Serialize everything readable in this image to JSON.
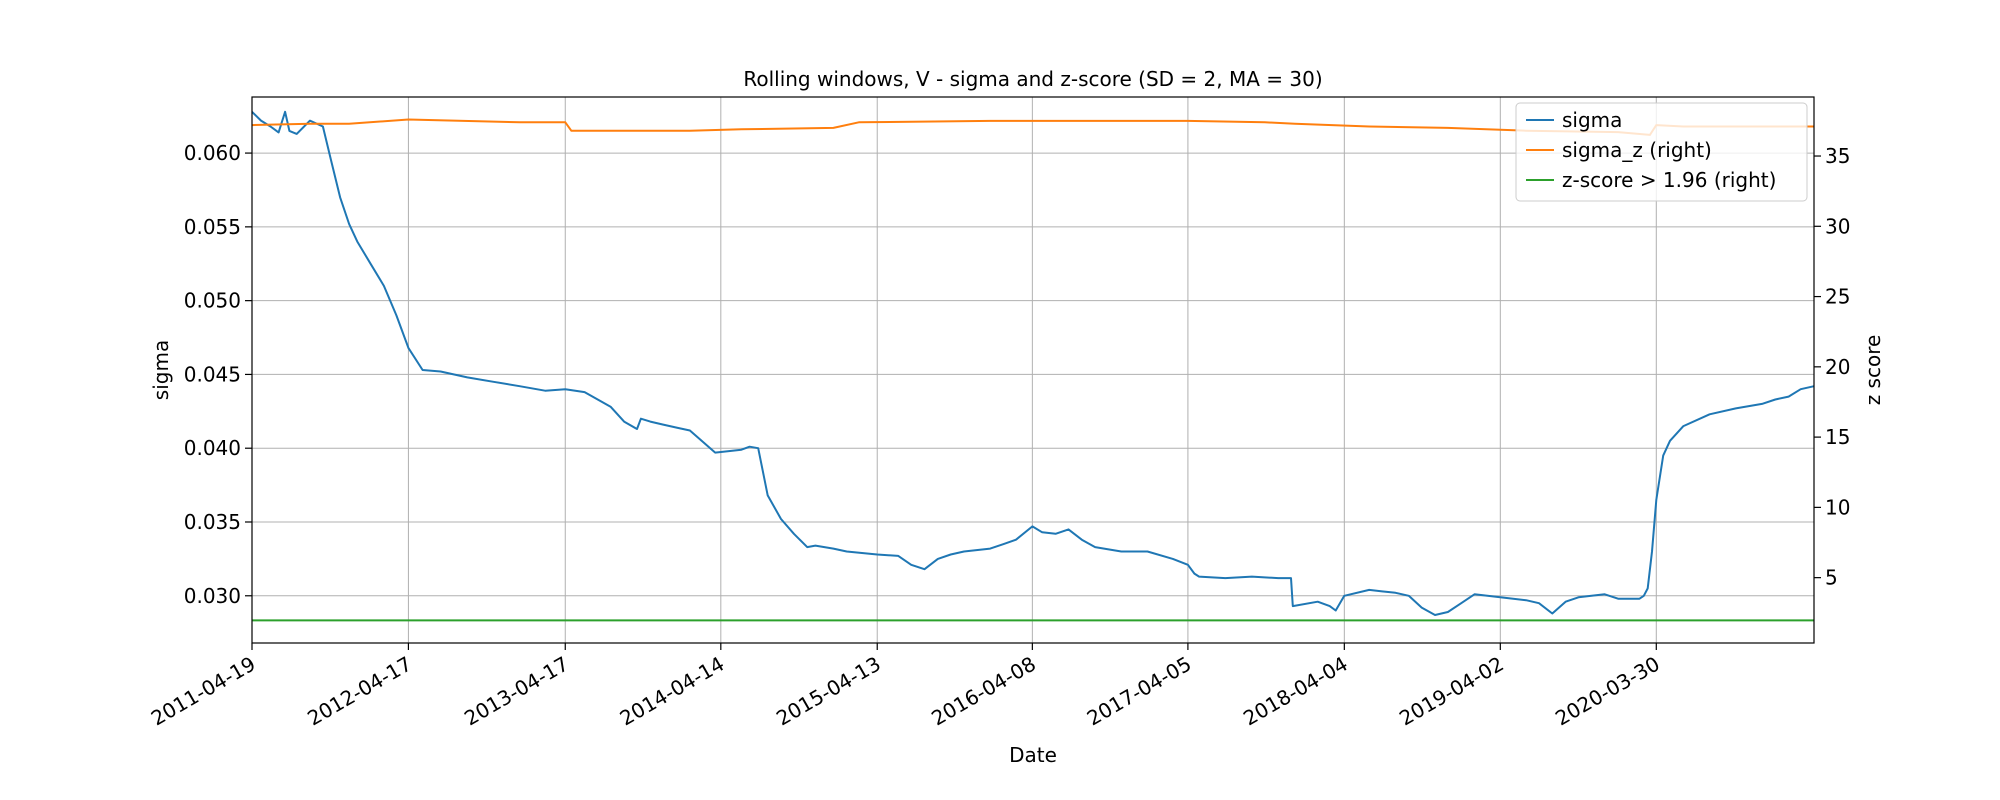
{
  "chart_data": {
    "type": "line",
    "title": "Rolling windows, V - sigma and z-score (SD = 2, MA = 30)",
    "xlabel": "Date",
    "ylabel": "sigma",
    "y2label": "z score",
    "xlim": [
      "2011-04-19",
      "2021-04-01"
    ],
    "ylim": [
      0.0268,
      0.0638
    ],
    "y2lim": [
      0.35,
      39.2
    ],
    "x_ticks": [
      "2011-04-19",
      "2012-04-17",
      "2013-04-17",
      "2014-04-14",
      "2015-04-13",
      "2016-04-08",
      "2017-04-05",
      "2018-04-04",
      "2019-04-02",
      "2020-03-30"
    ],
    "y_ticks": [
      "0.030",
      "0.035",
      "0.040",
      "0.045",
      "0.050",
      "0.055",
      "0.060"
    ],
    "y2_ticks": [
      "5",
      "10",
      "15",
      "20",
      "25",
      "30",
      "35"
    ],
    "grid": true,
    "legend_position": "top-right",
    "series": [
      {
        "name": "sigma",
        "axis": "left",
        "color": "#1f77b4",
        "x": [
          "2011-04-19",
          "2011-05-10",
          "2011-06-01",
          "2011-06-20",
          "2011-07-05",
          "2011-07-15",
          "2011-08-01",
          "2011-09-01",
          "2011-10-01",
          "2011-10-20",
          "2011-11-10",
          "2011-12-01",
          "2011-12-20",
          "2012-01-20",
          "2012-02-20",
          "2012-03-20",
          "2012-04-17",
          "2012-05-20",
          "2012-07-01",
          "2012-09-01",
          "2012-11-01",
          "2013-01-01",
          "2013-03-01",
          "2013-04-17",
          "2013-06-01",
          "2013-08-01",
          "2013-09-01",
          "2013-10-01",
          "2013-10-10",
          "2013-11-01",
          "2013-12-01",
          "2014-01-01",
          "2014-02-01",
          "2014-04-01",
          "2014-06-01",
          "2014-06-20",
          "2014-07-10",
          "2014-08-01",
          "2014-09-01",
          "2014-10-01",
          "2014-11-01",
          "2014-11-20",
          "2015-01-01",
          "2015-02-01",
          "2015-04-13",
          "2015-06-01",
          "2015-07-01",
          "2015-08-01",
          "2015-09-01",
          "2015-10-01",
          "2015-11-01",
          "2016-01-01",
          "2016-02-01",
          "2016-03-01",
          "2016-04-08",
          "2016-05-01",
          "2016-06-01",
          "2016-07-01",
          "2016-08-01",
          "2016-09-01",
          "2016-11-01",
          "2017-01-01",
          "2017-03-01",
          "2017-04-05",
          "2017-04-20",
          "2017-05-01",
          "2017-07-01",
          "2017-09-01",
          "2017-11-01",
          "2017-12-01",
          "2017-12-05",
          "2018-02-01",
          "2018-03-01",
          "2018-03-15",
          "2018-04-04",
          "2018-06-01",
          "2018-07-01",
          "2018-08-01",
          "2018-09-01",
          "2018-10-01",
          "2018-11-01",
          "2018-12-01",
          "2019-01-01",
          "2019-02-01",
          "2019-04-02",
          "2019-06-01",
          "2019-07-01",
          "2019-08-01",
          "2019-09-01",
          "2019-10-01",
          "2019-12-01",
          "2020-01-01",
          "2020-02-01",
          "2020-02-20",
          "2020-03-01",
          "2020-03-10",
          "2020-03-20",
          "2020-03-30",
          "2020-04-15",
          "2020-05-01",
          "2020-06-01",
          "2020-08-01",
          "2020-10-01",
          "2020-12-01",
          "2021-01-01",
          "2021-02-01",
          "2021-03-01",
          "2021-04-01"
        ],
        "values": [
          0.0628,
          0.0622,
          0.0618,
          0.0614,
          0.0628,
          0.0615,
          0.0613,
          0.0622,
          0.0618,
          0.0595,
          0.057,
          0.0552,
          0.054,
          0.0525,
          0.051,
          0.049,
          0.0468,
          0.0453,
          0.0452,
          0.0448,
          0.0445,
          0.0442,
          0.0439,
          0.044,
          0.0438,
          0.0428,
          0.0418,
          0.0413,
          0.042,
          0.0418,
          0.0416,
          0.0414,
          0.0412,
          0.0397,
          0.0399,
          0.0401,
          0.04,
          0.0368,
          0.0352,
          0.0342,
          0.0333,
          0.0334,
          0.0332,
          0.033,
          0.0328,
          0.0327,
          0.0321,
          0.0318,
          0.0325,
          0.0328,
          0.033,
          0.0332,
          0.0335,
          0.0338,
          0.0347,
          0.0343,
          0.0342,
          0.0345,
          0.0338,
          0.0333,
          0.033,
          0.033,
          0.0325,
          0.0321,
          0.0315,
          0.0313,
          0.0312,
          0.0313,
          0.0312,
          0.0312,
          0.0293,
          0.0296,
          0.0293,
          0.029,
          0.03,
          0.0304,
          0.0303,
          0.0302,
          0.03,
          0.0292,
          0.0287,
          0.0289,
          0.0295,
          0.0301,
          0.0299,
          0.0297,
          0.0295,
          0.0288,
          0.0296,
          0.0299,
          0.0301,
          0.0298,
          0.0298,
          0.0298,
          0.03,
          0.0305,
          0.033,
          0.0365,
          0.0395,
          0.0405,
          0.0415,
          0.0423,
          0.0427,
          0.043,
          0.0433,
          0.0435,
          0.044,
          0.0442
        ]
      },
      {
        "name": "sigma_z (right)",
        "axis": "right",
        "color": "#ff7f0e",
        "x": [
          "2011-04-19",
          "2011-09-01",
          "2011-12-01",
          "2012-04-17",
          "2013-01-01",
          "2013-04-17",
          "2013-05-01",
          "2014-02-01",
          "2014-06-01",
          "2015-01-01",
          "2015-03-01",
          "2016-01-01",
          "2016-06-01",
          "2017-04-05",
          "2017-10-01",
          "2017-12-10",
          "2018-06-01",
          "2018-12-01",
          "2019-06-01",
          "2020-01-01",
          "2020-03-15",
          "2020-03-30",
          "2020-06-01",
          "2021-04-01"
        ],
        "values": [
          37.2,
          37.3,
          37.3,
          37.6,
          37.4,
          37.4,
          36.8,
          36.8,
          36.9,
          37.0,
          37.4,
          37.5,
          37.5,
          37.5,
          37.4,
          37.3,
          37.1,
          37.0,
          36.8,
          36.7,
          36.5,
          37.2,
          37.1,
          37.1
        ]
      },
      {
        "name": "z-score > 1.96 (right)",
        "axis": "right",
        "color": "#2ca02c",
        "x": [
          "2011-04-19",
          "2021-04-01"
        ],
        "values": [
          1.96,
          1.96
        ]
      }
    ]
  }
}
